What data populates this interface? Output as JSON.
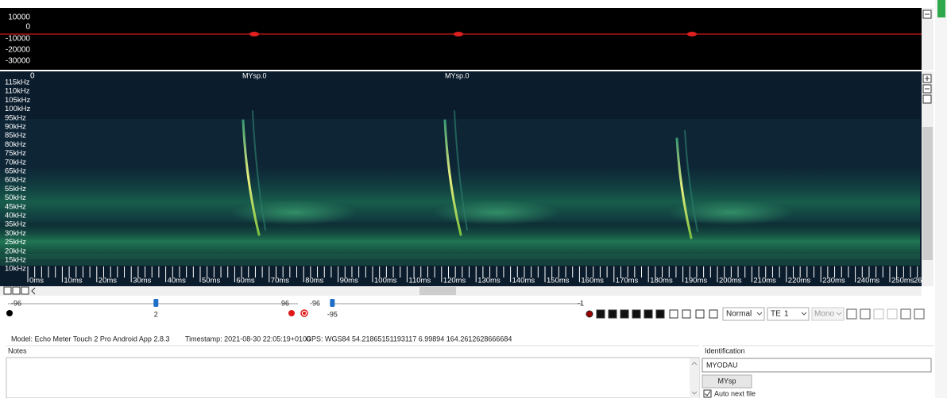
{
  "waveform": {
    "y_labels": [
      "10000",
      "0",
      "-10000",
      "-20000",
      "-30000"
    ]
  },
  "spectrogram": {
    "top_label": "0",
    "call_labels": [
      "MYsp.0",
      "MYsp.0"
    ],
    "freq_labels": [
      "115kHz",
      "110kHz",
      "105kHz",
      "100kHz",
      "95kHz",
      "90kHz",
      "85kHz",
      "80kHz",
      "75kHz",
      "70kHz",
      "65kHz",
      "60kHz",
      "55kHz",
      "50kHz",
      "45kHz",
      "40kHz",
      "35kHz",
      "30kHz",
      "25kHz",
      "20kHz",
      "15kHz",
      "10kHz"
    ],
    "time_labels": [
      "0ms",
      "10ms",
      "20ms",
      "30ms",
      "40ms",
      "50ms",
      "60ms",
      "70ms",
      "80ms",
      "90ms",
      "100ms",
      "110ms",
      "120ms",
      "130ms",
      "140ms",
      "150ms",
      "160ms",
      "170ms",
      "180ms",
      "190ms",
      "200ms",
      "210ms",
      "220ms",
      "230ms",
      "240ms",
      "250ms",
      "26"
    ]
  },
  "controls": {
    "slider1": {
      "min": -96,
      "value": 2,
      "max": 96
    },
    "slider2": {
      "min": -96,
      "value": -95,
      "max": -1
    },
    "mode": "Normal",
    "channel_type": "TE",
    "channel": 1,
    "audio": "Mono"
  },
  "metadata": {
    "model": "Model: Echo Meter Touch 2 Pro Android App 2.8.3",
    "timestamp": "Timestamp: 2021-08-30 22:05:19+0100",
    "gps": "GPS: WGS84 54.21865151193117 6.99894 164.2612628666684"
  },
  "notes": {
    "label": "Notes"
  },
  "identification": {
    "label": "Identification",
    "species": "MYODAU",
    "button": "MYsp",
    "auto_next": "Auto next file"
  }
}
